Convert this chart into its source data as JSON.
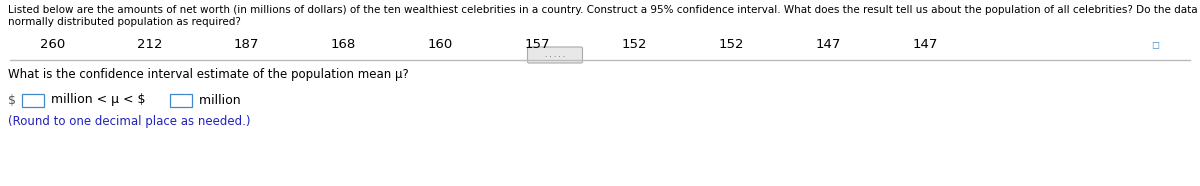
{
  "header_line1": "Listed below are the amounts of net worth (in millions of dollars) of the ten wealthiest celebrities in a country. Construct a 95% confidence interval. What does the result tell us about the population of all celebrities? Do the data appear to be from a",
  "header_line2": "normally distributed population as required?",
  "values": [
    260,
    212,
    187,
    168,
    160,
    157,
    152,
    152,
    147,
    147
  ],
  "question_text": "What is the confidence interval estimate of the population mean μ?",
  "round_note": "(Round to one decimal place as needed.)",
  "background_color": "#ffffff",
  "header_fontsize": 7.5,
  "value_fontsize": 9.5,
  "question_fontsize": 8.5,
  "ci_fontsize": 9.0,
  "round_fontsize": 8.5,
  "header_color": "#000000",
  "value_color": "#000000",
  "question_color": "#000000",
  "round_color": "#2222bb",
  "ci_dollar_color": "#555555",
  "ci_text_color": "#000000",
  "separator_color": "#bbbbbb",
  "box_edge_color": "#4488cc",
  "icon_color": "#4488cc",
  "scroll_dot_color": "#555555"
}
